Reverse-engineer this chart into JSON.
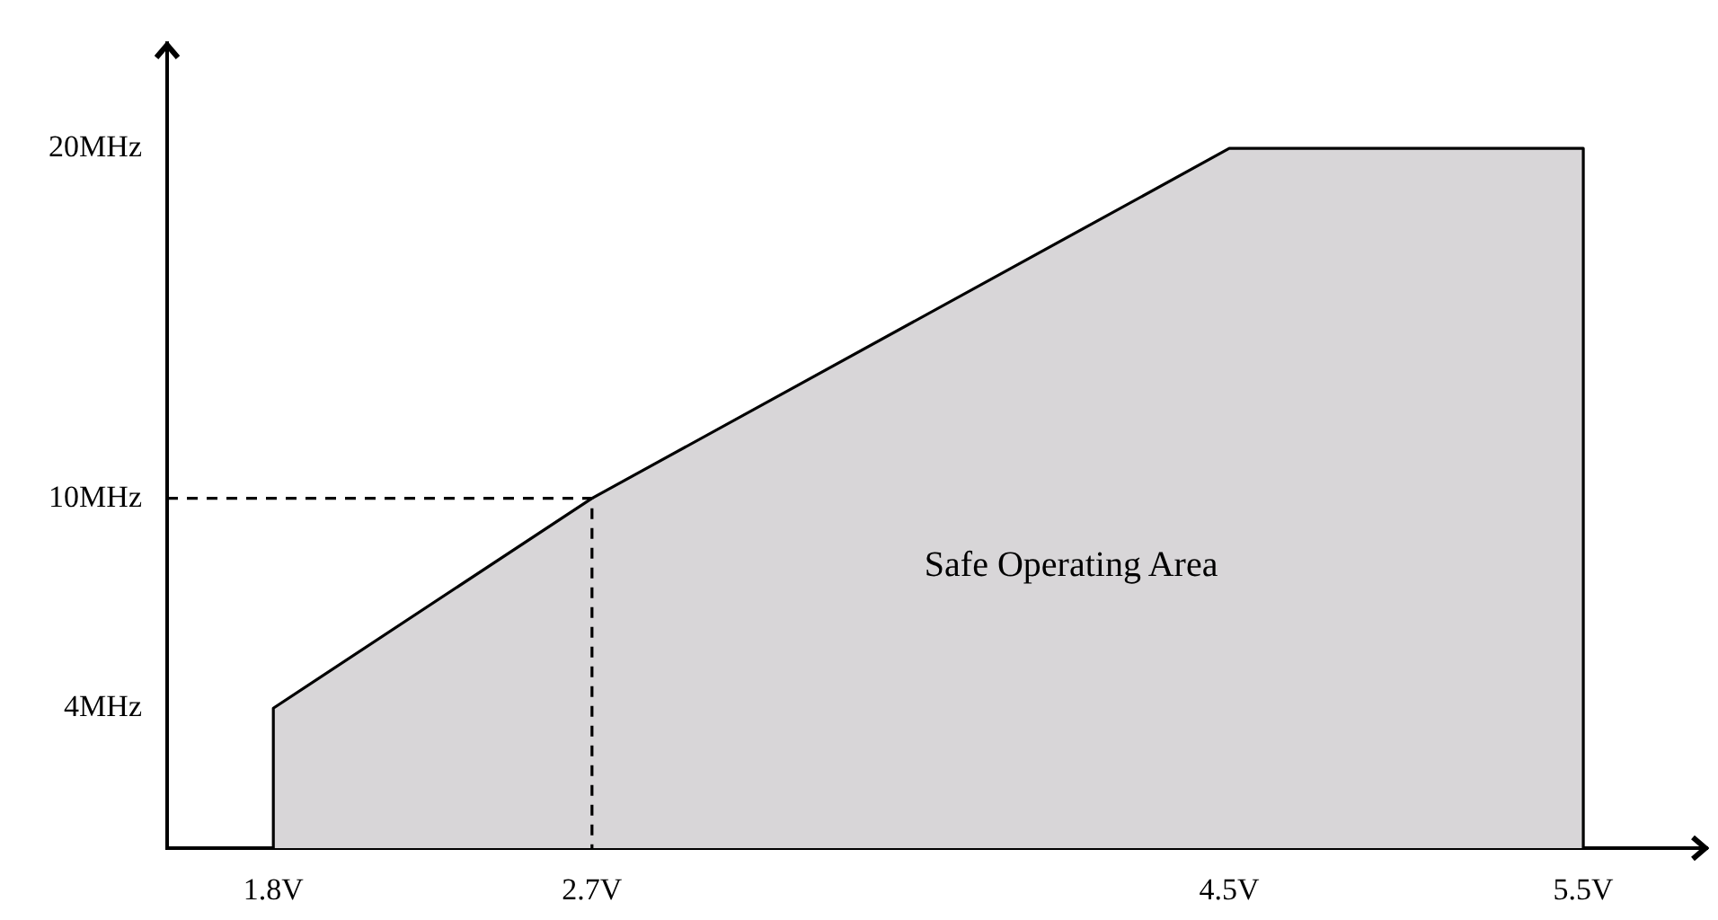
{
  "chart_data": {
    "type": "area",
    "marker": "none",
    "series": [
      {
        "color": "#d8d6d8",
        "x": [
          1.8,
          1.8,
          2.7,
          4.5,
          5.5,
          5.5
        ],
        "values": [
          0,
          4,
          10,
          20,
          20,
          0
        ]
      },
      {
        "type": "line",
        "color": "#000000",
        "line_style": "dashed",
        "x": [
          1.5,
          2.7,
          2.7
        ],
        "values": [
          10,
          10,
          0
        ]
      }
    ],
    "xlim": [
      1.5,
      5.85
    ],
    "ylim": [
      0,
      23
    ],
    "xticks": [
      {
        "value": 1.8,
        "label": "1.8V"
      },
      {
        "value": 2.7,
        "label": "2.7V"
      },
      {
        "value": 4.5,
        "label": "4.5V"
      },
      {
        "value": 5.5,
        "label": "5.5V"
      }
    ],
    "yticks": [
      {
        "value": 4,
        "label": "4MHz"
      },
      {
        "value": 10,
        "label": "10MHz"
      },
      {
        "value": 20,
        "label": "20MHz"
      }
    ],
    "annotations": [
      "Safe Operating Area"
    ]
  }
}
